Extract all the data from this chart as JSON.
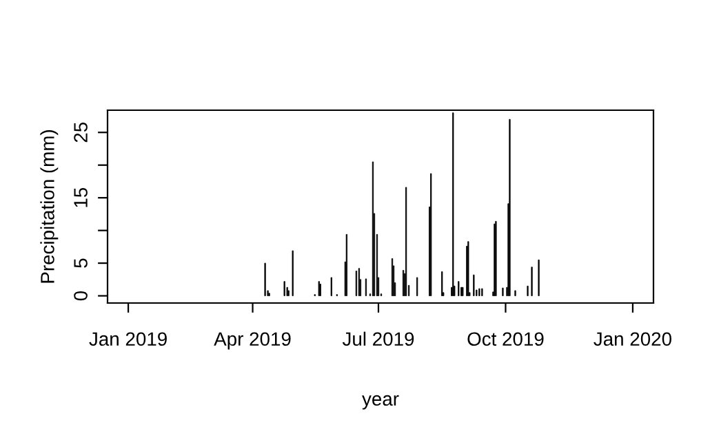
{
  "chart_data": {
    "type": "bar",
    "xlabel": "year",
    "ylabel": "Precipitation (mm)",
    "color": "#000000",
    "grid": false,
    "legend": false,
    "x": [
      "2019-04-10",
      "2019-04-12",
      "2019-04-13",
      "2019-04-24",
      "2019-04-26",
      "2019-04-27",
      "2019-04-30",
      "2019-05-16",
      "2019-05-19",
      "2019-05-20",
      "2019-05-28",
      "2019-06-01",
      "2019-06-07",
      "2019-06-08",
      "2019-06-15",
      "2019-06-17",
      "2019-06-18",
      "2019-06-22",
      "2019-06-25",
      "2019-06-27",
      "2019-06-28",
      "2019-06-30",
      "2019-07-01",
      "2019-07-03",
      "2019-07-11",
      "2019-07-12",
      "2019-07-13",
      "2019-07-19",
      "2019-07-20",
      "2019-07-21",
      "2019-07-23",
      "2019-07-29",
      "2019-08-07",
      "2019-08-08",
      "2019-08-16",
      "2019-08-17",
      "2019-08-23",
      "2019-08-24",
      "2019-08-25",
      "2019-08-28",
      "2019-08-30",
      "2019-08-31",
      "2019-09-03",
      "2019-09-04",
      "2019-09-05",
      "2019-09-08",
      "2019-09-10",
      "2019-09-12",
      "2019-09-14",
      "2019-09-22",
      "2019-09-23",
      "2019-09-24",
      "2019-09-29",
      "2019-10-02",
      "2019-10-03",
      "2019-10-04",
      "2019-10-08",
      "2019-10-17",
      "2019-10-20",
      "2019-10-25"
    ],
    "values": [
      5.0,
      0.8,
      0.4,
      2.2,
      1.3,
      0.8,
      6.9,
      0.2,
      2.2,
      1.8,
      2.8,
      0.2,
      5.2,
      9.4,
      3.8,
      4.2,
      2.5,
      2.6,
      0.3,
      20.5,
      12.6,
      9.4,
      2.8,
      0.3,
      5.7,
      4.6,
      2.0,
      3.9,
      3.4,
      16.6,
      1.6,
      2.8,
      13.6,
      18.7,
      3.7,
      0.5,
      1.3,
      28.0,
      1.5,
      2.2,
      1.3,
      1.3,
      7.6,
      8.3,
      0.5,
      3.2,
      0.9,
      1.1,
      1.1,
      0.6,
      11.0,
      11.4,
      1.2,
      1.3,
      14.1,
      27.0,
      0.8,
      1.5,
      4.4,
      5.5
    ],
    "xlim": [
      "2018-12-17",
      "2020-01-16"
    ],
    "xticks": [
      {
        "value": "2019-01-01",
        "label": "Jan 2019"
      },
      {
        "value": "2019-04-01",
        "label": "Apr 2019"
      },
      {
        "value": "2019-07-01",
        "label": "Jul 2019"
      },
      {
        "value": "2019-10-01",
        "label": "Oct 2019"
      },
      {
        "value": "2020-01-01",
        "label": "Jan 2020"
      }
    ],
    "ylim": [
      -1.1,
      28.4
    ],
    "yticks": [
      0,
      5,
      {
        "value": 10,
        "label": null
      },
      15,
      {
        "value": 20,
        "label": null
      },
      25
    ]
  }
}
